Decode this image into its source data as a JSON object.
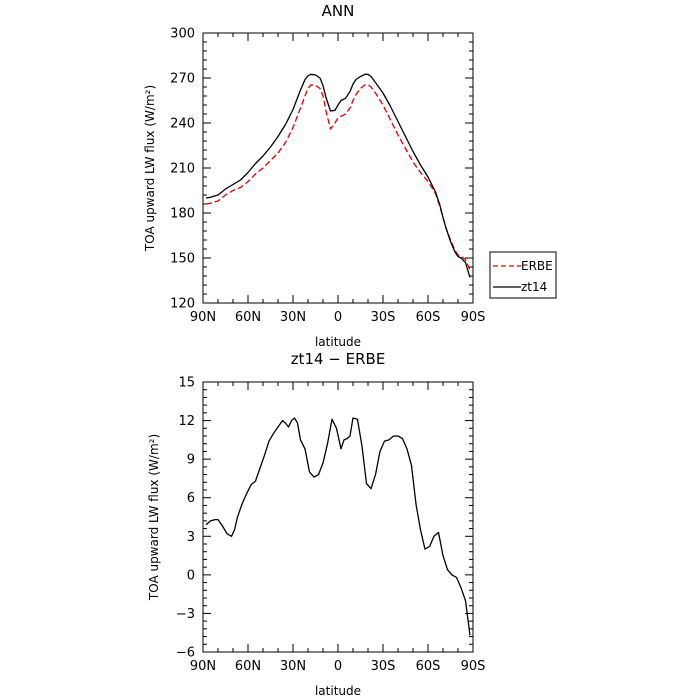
{
  "chart_data": [
    {
      "type": "line",
      "title": "ANN",
      "xlabel": "latitude",
      "ylabel": "TOA upward LW flux (W/m²)",
      "x_reversed": true,
      "xlim": [
        90,
        -90
      ],
      "ylim": [
        120,
        300
      ],
      "xticks": [
        90,
        60,
        30,
        0,
        -30,
        -60,
        -90
      ],
      "xtick_labels": [
        "90N",
        "60N",
        "30N",
        "0",
        "30S",
        "60S",
        "90S"
      ],
      "yticks": [
        120,
        150,
        180,
        210,
        240,
        270,
        300
      ],
      "ytick_labels": [
        "120",
        "150",
        "180",
        "210",
        "240",
        "270",
        "300"
      ],
      "legend": {
        "placement": "right",
        "entries": [
          "ERBE",
          "zt14"
        ]
      },
      "x": [
        88,
        85,
        80,
        75,
        70,
        65,
        60,
        55,
        50,
        45,
        40,
        35,
        30,
        25,
        22,
        20,
        18,
        15,
        12,
        10,
        8,
        5,
        2,
        0,
        -2,
        -5,
        -8,
        -10,
        -12,
        -15,
        -18,
        -20,
        -22,
        -25,
        -30,
        -35,
        -40,
        -45,
        -50,
        -55,
        -60,
        -62,
        -65,
        -68,
        -70,
        -72,
        -75,
        -78,
        -80,
        -82,
        -85,
        -88
      ],
      "series": [
        {
          "name": "ERBE",
          "color": "#e00000",
          "dash": "dashed",
          "values": [
            186,
            186.5,
            188,
            192,
            195,
            197,
            201,
            206,
            210,
            215,
            220,
            227,
            237,
            250,
            258,
            263,
            265.5,
            265,
            263,
            258,
            248,
            236,
            240,
            243.5,
            244.5,
            246,
            250,
            255,
            259,
            263,
            265.5,
            265.5,
            264,
            260,
            252,
            242,
            232,
            223,
            214,
            207,
            201,
            198,
            193,
            184,
            177,
            170,
            162,
            155,
            152,
            151,
            149,
            142
          ]
        },
        {
          "name": "zt14",
          "color": "#000000",
          "dash": "solid",
          "values": [
            190,
            190.5,
            192,
            196,
            199,
            202,
            207,
            213,
            218,
            224,
            231,
            239,
            249,
            262,
            269,
            271.5,
            272.5,
            272,
            270,
            265,
            257,
            248,
            248.5,
            252,
            255,
            256.5,
            261,
            266,
            269,
            271,
            272.5,
            272.5,
            271,
            267,
            260,
            251,
            241,
            231,
            221,
            212,
            204,
            200,
            194,
            185,
            177,
            170,
            161,
            154,
            151,
            150,
            147,
            137
          ]
        }
      ]
    },
    {
      "type": "line",
      "title": "zt14 − ERBE",
      "xlabel": "latitude",
      "ylabel": "TOA upward LW flux (W/m²)",
      "x_reversed": true,
      "xlim": [
        90,
        -90
      ],
      "ylim": [
        -6,
        15
      ],
      "xticks": [
        90,
        60,
        30,
        0,
        -30,
        -60,
        -90
      ],
      "xtick_labels": [
        "90N",
        "60N",
        "30N",
        "0",
        "30S",
        "60S",
        "90S"
      ],
      "yticks": [
        -6,
        -3,
        0,
        3,
        6,
        9,
        12,
        15
      ],
      "ytick_labels": [
        "−6",
        "−3",
        "0",
        "3",
        "6",
        "9",
        "12",
        "15"
      ],
      "x": [
        88,
        85,
        82,
        80,
        77,
        74,
        71,
        69,
        67,
        64,
        61,
        58,
        55,
        52,
        49,
        46,
        43,
        40,
        37,
        35,
        33,
        31,
        29,
        27,
        25,
        22,
        19,
        16,
        13,
        10,
        7,
        4,
        1,
        -2,
        -4,
        -6,
        -8,
        -10,
        -13,
        -16,
        -19,
        -22,
        -25,
        -28,
        -31,
        -34,
        -37,
        -40,
        -43,
        -46,
        -49,
        -52,
        -55,
        -58,
        -61,
        -64,
        -67,
        -70,
        -73,
        -76,
        -79,
        -82,
        -85,
        -88
      ],
      "series": [
        {
          "name": "zt14 − ERBE",
          "color": "#000000",
          "dash": "solid",
          "values": [
            3.9,
            4.2,
            4.3,
            4.3,
            3.8,
            3.2,
            3.0,
            3.5,
            4.5,
            5.5,
            6.3,
            7.0,
            7.3,
            8.3,
            9.3,
            10.4,
            11.0,
            11.5,
            12.0,
            11.8,
            11.5,
            12.0,
            12.2,
            11.8,
            10.5,
            9.8,
            8.0,
            7.6,
            7.8,
            8.7,
            10.2,
            12.1,
            11.4,
            9.8,
            10.5,
            10.6,
            10.8,
            12.2,
            12.1,
            10.0,
            7.1,
            6.7,
            7.8,
            9.6,
            10.4,
            10.5,
            10.8,
            10.8,
            10.6,
            9.8,
            8.5,
            5.5,
            3.5,
            2.0,
            2.2,
            3.0,
            3.3,
            1.5,
            0.4,
            0.0,
            -0.2,
            -1.0,
            -2.0,
            -4.7
          ]
        }
      ]
    }
  ]
}
